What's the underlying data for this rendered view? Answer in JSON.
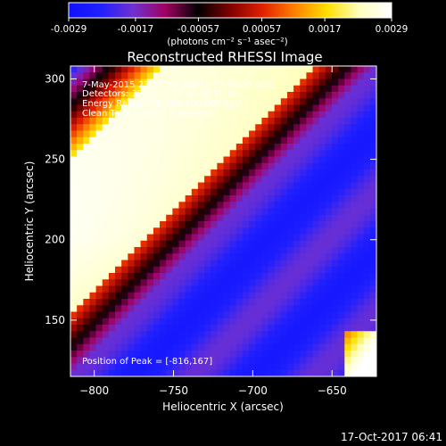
{
  "colorbar": {
    "tick_labels": [
      "-0.0029",
      "-0.0017",
      "-0.00057",
      "0.00057",
      "0.0017",
      "0.0029"
    ],
    "tick_values": [
      -0.0029,
      -0.0017,
      -0.00057,
      0.00057,
      0.0017,
      0.0029
    ],
    "range": [
      -0.0029,
      0.0029
    ],
    "unit_label": "(photons cm⁻² s⁻¹ asec⁻²)",
    "colors": [
      "#1010ff",
      "#2020ff",
      "#7030d0",
      "#a00060",
      "#000000",
      "#800000",
      "#e02000",
      "#ff8000",
      "#ffe000",
      "#ffffc0",
      "#ffffff"
    ]
  },
  "overlay": {
    "line1": "7-May-2015 23:44:56.000 to 23:46:56.000",
    "line2": "Detectors: 3F 5F 6F 7F 8F 9F 1F 4F",
    "line3": "Energy Range: 25.000-300.000 keV",
    "line4": "Clean    Total counts: 2.00e+04",
    "peak": "Position of Peak = [-816,167]"
  },
  "footer": {
    "timestamp": "17-Oct-2017 06:41"
  },
  "chart_data": {
    "type": "heatmap",
    "title": "Reconstructed RHESSI Image",
    "xlabel": "Heliocentric X (arcsec)",
    "ylabel": "Heliocentric Y (arcsec)",
    "xlim": [
      -815,
      -622
    ],
    "ylim": [
      115,
      308
    ],
    "xticks": [
      -800,
      -750,
      -700,
      -650
    ],
    "yticks": [
      150,
      200,
      250,
      300
    ],
    "xtick_labels": [
      "−800",
      "−750",
      "−700",
      "−650"
    ],
    "ytick_labels": [
      "150",
      "200",
      "250",
      "300"
    ],
    "peak_position": [
      -816,
      167
    ],
    "value_range": [
      -0.0029,
      0.0029
    ],
    "pattern": "diagonal fringes oriented lower-left to upper-right: bright positive band upper-left, dark zero line through the middle, negative blue region lower-right, with weak purple secondary fringes"
  }
}
